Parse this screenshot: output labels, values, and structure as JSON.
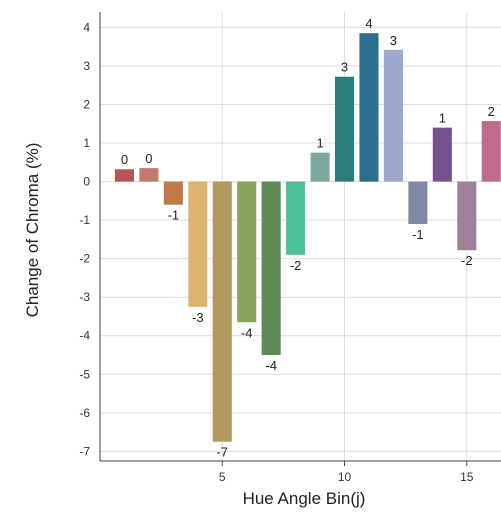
{
  "chart_data": {
    "type": "bar",
    "title": "",
    "xlabel": "Hue Angle Bin(j)",
    "ylabel": "Change of Chroma (%)",
    "x": [
      1,
      2,
      3,
      4,
      5,
      6,
      7,
      8,
      9,
      10,
      11,
      12,
      13,
      14,
      15,
      16
    ],
    "values": [
      0.32,
      0.35,
      -0.6,
      -3.25,
      -6.75,
      -3.65,
      -4.5,
      -1.9,
      0.75,
      2.72,
      3.85,
      3.42,
      -1.1,
      1.4,
      -1.78,
      1.57
    ],
    "data_labels": [
      "0",
      "0",
      "-1",
      "-3",
      "-7",
      "-4",
      "-4",
      "-2",
      "1",
      "3",
      "4",
      "3",
      "-1",
      "1",
      "-2",
      "2"
    ],
    "bar_colors": [
      "#b5555b",
      "#c27a6c",
      "#c07a48",
      "#dcb46c",
      "#b09a5c",
      "#8ca35e",
      "#5f8a55",
      "#4fc09c",
      "#7ca89e",
      "#2c7c79",
      "#2d6e8e",
      "#9ba9d0",
      "#7f88a6",
      "#73528f",
      "#a0819c",
      "#c06a8e"
    ],
    "xticks": [
      5,
      10,
      15
    ],
    "yticks": [
      4,
      3,
      2,
      1,
      0,
      -1,
      -2,
      -3,
      -4,
      -5,
      -6,
      -7
    ],
    "xlim": [
      0,
      16.4
    ],
    "ylim": [
      -7.25,
      4.4
    ],
    "grid": true
  }
}
